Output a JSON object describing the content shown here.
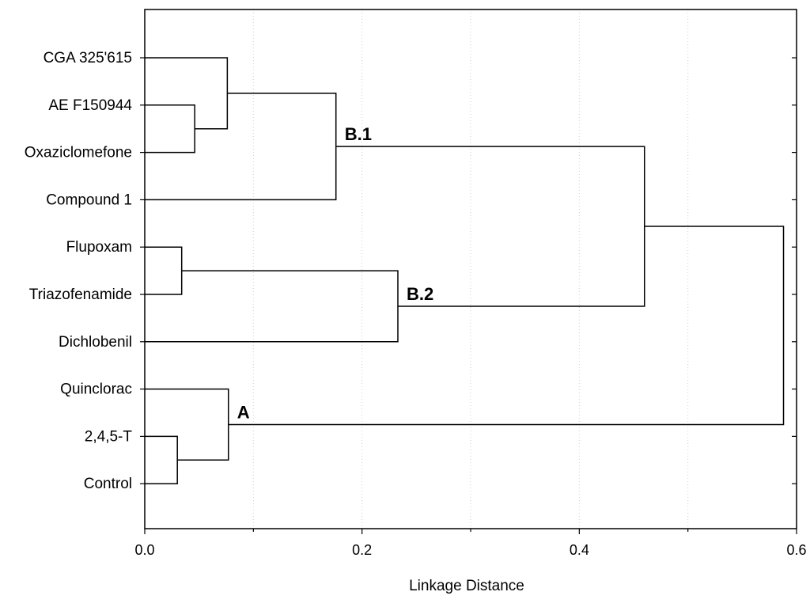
{
  "chart_data": {
    "type": "dendrogram",
    "xlabel": "Linkage Distance",
    "xlim": [
      0.0,
      0.6
    ],
    "x_ticks": [
      0.0,
      0.2,
      0.4,
      0.6
    ],
    "x_tick_labels": [
      "0.0",
      "0.2",
      "0.4",
      "0.6"
    ],
    "grid": true,
    "leaves": [
      "CGA 325'615",
      "AE F150944",
      "Oxaziclomefone",
      "Compound 1",
      "Flupoxam",
      "Triazofenamide",
      "Dichlobenil",
      "Quinclorac",
      "2,4,5-T",
      "Control"
    ],
    "merges": [
      {
        "id": "m1",
        "left": "AE F150944",
        "right": "Oxaziclomefone",
        "distance": 0.046
      },
      {
        "id": "m2",
        "left": "CGA 325'615",
        "right": "m1",
        "distance": 0.076
      },
      {
        "id": "m3",
        "left": "m2",
        "right": "Compound 1",
        "distance": 0.176,
        "label": "B.1"
      },
      {
        "id": "m4",
        "left": "Flupoxam",
        "right": "Triazofenamide",
        "distance": 0.034
      },
      {
        "id": "m5",
        "left": "m4",
        "right": "Dichlobenil",
        "distance": 0.233,
        "label": "B.2"
      },
      {
        "id": "m6",
        "left": "m3",
        "right": "m5",
        "distance": 0.46
      },
      {
        "id": "m7",
        "left": "2,4,5-T",
        "right": "Control",
        "distance": 0.03
      },
      {
        "id": "m8",
        "left": "Quinclorac",
        "right": "m7",
        "distance": 0.077,
        "label": "A"
      },
      {
        "id": "m9",
        "left": "m6",
        "right": "m8",
        "distance": 0.588
      }
    ]
  }
}
